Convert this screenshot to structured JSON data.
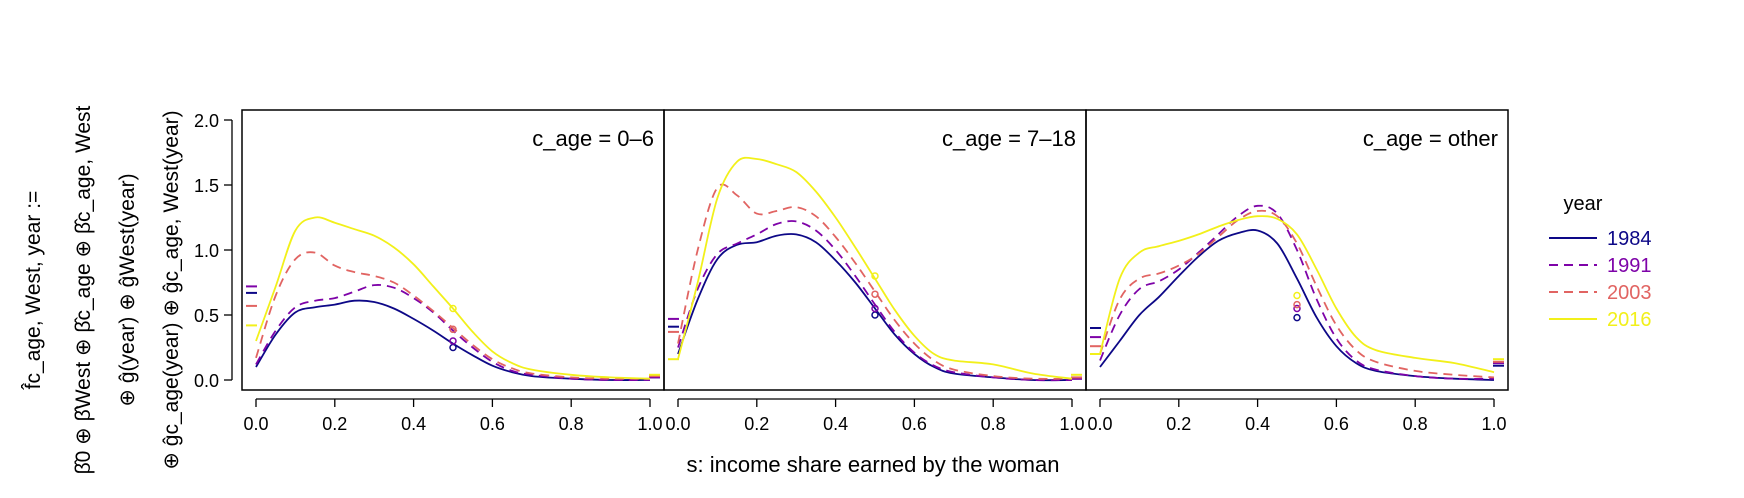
{
  "chart_data": {
    "type": "line",
    "xlabel": "s: income share earned by the woman",
    "ylabel_lines": [
      "f̂c_age, West, year :=",
      "β̂0 ⊕ β̂West ⊕ β̂c_age ⊕ β̂c_age, West",
      "⊕ ĝ(year) ⊕ ĝWest(year)",
      "⊕ ĝc_age(year) ⊕ ĝc_age, West(year)"
    ],
    "xlim": [
      0,
      1
    ],
    "ylim": [
      0,
      2
    ],
    "x_ticks": [
      "0.0",
      "0.2",
      "0.4",
      "0.6",
      "0.8",
      "1.0"
    ],
    "y_ticks": [
      "0.0",
      "0.5",
      "1.0",
      "1.5",
      "2.0"
    ],
    "legend": {
      "title": "year",
      "position": "right",
      "entries": [
        {
          "label": "1984",
          "color": "#0d0887",
          "dash": "solid"
        },
        {
          "label": "1991",
          "color": "#7e03a8",
          "dash": "dashed"
        },
        {
          "label": "2003",
          "color": "#e16462",
          "dash": "dashed"
        },
        {
          "label": "2016",
          "color": "#f2f01a",
          "dash": "solid"
        }
      ]
    },
    "panels": [
      {
        "title": "c_age = 0–6",
        "series": [
          {
            "name": "1984",
            "x": [
              0,
              0.05,
              0.1,
              0.15,
              0.2,
              0.25,
              0.3,
              0.35,
              0.4,
              0.45,
              0.5,
              0.55,
              0.6,
              0.65,
              0.7,
              0.8,
              0.9,
              1.0
            ],
            "y": [
              0.1,
              0.35,
              0.52,
              0.56,
              0.58,
              0.61,
              0.6,
              0.55,
              0.47,
              0.38,
              0.28,
              0.19,
              0.11,
              0.06,
              0.03,
              0.01,
              0.0,
              0.0
            ],
            "point0": 0.67,
            "point1": 0.02,
            "mid": 0.25
          },
          {
            "name": "1991",
            "x": [
              0,
              0.05,
              0.1,
              0.15,
              0.2,
              0.25,
              0.3,
              0.35,
              0.4,
              0.45,
              0.5,
              0.55,
              0.6,
              0.65,
              0.7,
              0.8,
              0.9,
              1.0
            ],
            "y": [
              0.12,
              0.38,
              0.56,
              0.61,
              0.63,
              0.68,
              0.73,
              0.71,
              0.63,
              0.52,
              0.38,
              0.25,
              0.14,
              0.07,
              0.04,
              0.01,
              0.0,
              0.0
            ],
            "point0": 0.72,
            "point1": 0.02,
            "mid": 0.3
          },
          {
            "name": "2003",
            "x": [
              0,
              0.05,
              0.1,
              0.15,
              0.2,
              0.25,
              0.3,
              0.35,
              0.4,
              0.45,
              0.5,
              0.55,
              0.6,
              0.65,
              0.7,
              0.8,
              0.9,
              1.0
            ],
            "y": [
              0.17,
              0.65,
              0.93,
              0.98,
              0.88,
              0.83,
              0.8,
              0.75,
              0.65,
              0.53,
              0.4,
              0.27,
              0.16,
              0.09,
              0.05,
              0.02,
              0.01,
              0.01
            ],
            "point0": 0.57,
            "point1": 0.03,
            "mid": 0.39
          },
          {
            "name": "2016",
            "x": [
              0,
              0.05,
              0.1,
              0.15,
              0.2,
              0.25,
              0.3,
              0.35,
              0.4,
              0.45,
              0.5,
              0.55,
              0.6,
              0.65,
              0.7,
              0.8,
              0.9,
              1.0
            ],
            "y": [
              0.3,
              0.72,
              1.15,
              1.25,
              1.21,
              1.16,
              1.11,
              1.02,
              0.89,
              0.72,
              0.55,
              0.37,
              0.22,
              0.13,
              0.08,
              0.04,
              0.02,
              0.01
            ],
            "point0": 0.42,
            "point1": 0.04,
            "mid": 0.55
          }
        ]
      },
      {
        "title": "c_age = 7–18",
        "series": [
          {
            "name": "1984",
            "x": [
              0,
              0.05,
              0.1,
              0.15,
              0.2,
              0.25,
              0.3,
              0.35,
              0.4,
              0.45,
              0.5,
              0.55,
              0.6,
              0.65,
              0.7,
              0.8,
              0.9,
              1.0
            ],
            "y": [
              0.2,
              0.62,
              0.93,
              1.04,
              1.06,
              1.11,
              1.12,
              1.06,
              0.92,
              0.75,
              0.55,
              0.35,
              0.2,
              0.1,
              0.05,
              0.02,
              0.0,
              0.0
            ],
            "point0": 0.41,
            "point1": 0.01,
            "mid": 0.5
          },
          {
            "name": "1991",
            "x": [
              0,
              0.05,
              0.1,
              0.15,
              0.2,
              0.25,
              0.3,
              0.35,
              0.4,
              0.45,
              0.5,
              0.55,
              0.6,
              0.65,
              0.7,
              0.8,
              0.9,
              1.0
            ],
            "y": [
              0.25,
              0.7,
              0.97,
              1.05,
              1.12,
              1.2,
              1.22,
              1.15,
              1.0,
              0.8,
              0.58,
              0.37,
              0.21,
              0.11,
              0.06,
              0.02,
              0.0,
              0.0
            ],
            "point0": 0.47,
            "point1": 0.01,
            "mid": 0.55
          },
          {
            "name": "2003",
            "x": [
              0,
              0.05,
              0.1,
              0.15,
              0.2,
              0.25,
              0.3,
              0.35,
              0.4,
              0.45,
              0.5,
              0.55,
              0.6,
              0.65,
              0.7,
              0.8,
              0.9,
              1.0
            ],
            "y": [
              0.28,
              1.0,
              1.48,
              1.42,
              1.28,
              1.3,
              1.33,
              1.26,
              1.1,
              0.9,
              0.68,
              0.46,
              0.28,
              0.15,
              0.08,
              0.03,
              0.01,
              0.01
            ],
            "point0": 0.37,
            "point1": 0.02,
            "mid": 0.66
          },
          {
            "name": "2016",
            "x": [
              0,
              0.05,
              0.1,
              0.15,
              0.2,
              0.25,
              0.3,
              0.35,
              0.4,
              0.45,
              0.5,
              0.55,
              0.6,
              0.65,
              0.7,
              0.8,
              0.9,
              1.0
            ],
            "y": [
              0.16,
              0.75,
              1.4,
              1.68,
              1.7,
              1.66,
              1.6,
              1.45,
              1.25,
              1.02,
              0.78,
              0.54,
              0.34,
              0.2,
              0.15,
              0.12,
              0.05,
              0.01
            ],
            "point0": 0.16,
            "point1": 0.04,
            "mid": 0.8
          }
        ]
      },
      {
        "title": "c_age = other",
        "series": [
          {
            "name": "1984",
            "x": [
              0,
              0.05,
              0.1,
              0.15,
              0.2,
              0.25,
              0.3,
              0.35,
              0.4,
              0.45,
              0.5,
              0.55,
              0.6,
              0.65,
              0.7,
              0.8,
              0.9,
              1.0
            ],
            "y": [
              0.1,
              0.3,
              0.5,
              0.64,
              0.8,
              0.95,
              1.07,
              1.13,
              1.15,
              1.05,
              0.78,
              0.48,
              0.26,
              0.13,
              0.07,
              0.03,
              0.01,
              0.0
            ],
            "point0": 0.4,
            "point1": 0.11,
            "mid": 0.48
          },
          {
            "name": "1991",
            "x": [
              0,
              0.05,
              0.1,
              0.15,
              0.2,
              0.25,
              0.3,
              0.35,
              0.4,
              0.45,
              0.5,
              0.55,
              0.6,
              0.65,
              0.7,
              0.8,
              0.9,
              1.0
            ],
            "y": [
              0.15,
              0.5,
              0.7,
              0.76,
              0.85,
              0.98,
              1.12,
              1.26,
              1.34,
              1.28,
              1.0,
              0.62,
              0.32,
              0.15,
              0.08,
              0.03,
              0.01,
              0.01
            ],
            "point0": 0.33,
            "point1": 0.13,
            "mid": 0.55
          },
          {
            "name": "2003",
            "x": [
              0,
              0.05,
              0.1,
              0.15,
              0.2,
              0.25,
              0.3,
              0.35,
              0.4,
              0.45,
              0.5,
              0.55,
              0.6,
              0.65,
              0.7,
              0.8,
              0.9,
              1.0
            ],
            "y": [
              0.2,
              0.62,
              0.78,
              0.82,
              0.88,
              0.97,
              1.1,
              1.23,
              1.3,
              1.26,
              1.05,
              0.72,
              0.42,
              0.23,
              0.14,
              0.07,
              0.04,
              0.02
            ],
            "point0": 0.26,
            "point1": 0.14,
            "mid": 0.58
          },
          {
            "name": "2016",
            "x": [
              0,
              0.05,
              0.1,
              0.15,
              0.2,
              0.25,
              0.3,
              0.35,
              0.4,
              0.45,
              0.5,
              0.55,
              0.6,
              0.65,
              0.7,
              0.8,
              0.9,
              1.0
            ],
            "y": [
              0.2,
              0.78,
              0.98,
              1.03,
              1.07,
              1.12,
              1.18,
              1.23,
              1.26,
              1.24,
              1.12,
              0.85,
              0.55,
              0.33,
              0.23,
              0.17,
              0.13,
              0.06
            ],
            "point0": 0.2,
            "point1": 0.16,
            "mid": 0.65
          }
        ]
      }
    ]
  }
}
